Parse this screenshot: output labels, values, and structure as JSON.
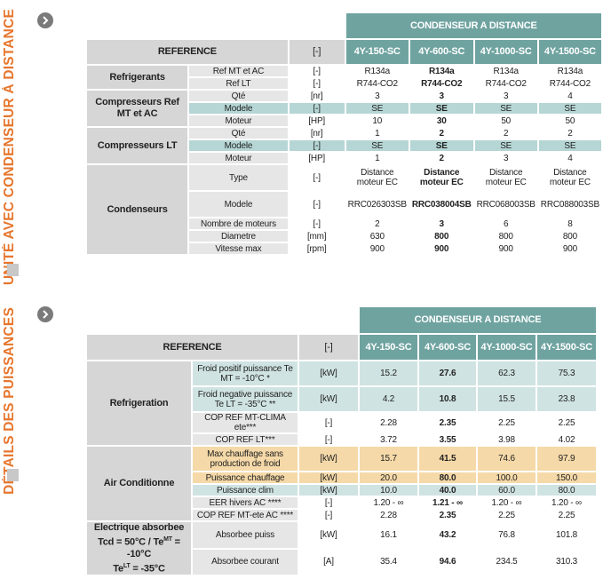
{
  "section1": {
    "side_title": "UNITÉ AVEC CONDENSEUR À DISTANCE",
    "banner": "CONDENSEUR A DISTANCE",
    "ref_label": "REFERENCE",
    "unit_label": "[-]",
    "models": [
      "4Y-150-SC",
      "4Y-600-SC",
      "4Y-1000-SC",
      "4Y-1500-SC"
    ],
    "groups": [
      {
        "name": "Refrigerants",
        "rows": [
          {
            "label": "Ref MT et AC",
            "unit": "[-]",
            "vals": [
              "R134a",
              "R134a",
              "R134a",
              "R134a"
            ]
          },
          {
            "label": "Ref LT",
            "unit": "[-]",
            "vals": [
              "R744-CO2",
              "R744-CO2",
              "R744-CO2",
              "R744-CO2"
            ]
          }
        ]
      },
      {
        "name": "Compresseurs Ref MT et AC",
        "rows": [
          {
            "label": "Qté",
            "unit": "[nr]",
            "vals": [
              "3",
              "3",
              "3",
              "4"
            ]
          },
          {
            "label": "Modele",
            "unit": "[-]",
            "vals": [
              "SE",
              "SE",
              "SE",
              "SE"
            ]
          },
          {
            "label": "Moteur",
            "unit": "[HP]",
            "vals": [
              "10",
              "30",
              "50",
              "50"
            ]
          }
        ]
      },
      {
        "name": "Compresseurs LT",
        "rows": [
          {
            "label": "Qté",
            "unit": "[nr]",
            "vals": [
              "1",
              "2",
              "2",
              "2"
            ]
          },
          {
            "label": "Modele",
            "unit": "[-]",
            "vals": [
              "SE",
              "SE",
              "SE",
              "SE"
            ]
          },
          {
            "label": "Moteur",
            "unit": "[HP]",
            "vals": [
              "1",
              "2",
              "3",
              "4"
            ]
          }
        ]
      },
      {
        "name": "Condenseurs",
        "rows": [
          {
            "label": "Type",
            "unit": "[-]",
            "vals": [
              "Distance moteur EC",
              "Distance moteur EC",
              "Distance moteur EC",
              "Distance moteur EC"
            ]
          },
          {
            "label": "Modele",
            "unit": "[-]",
            "vals": [
              "RRC026303SB",
              "RRC038004SB",
              "RRC068003SB",
              "RRC088003SB"
            ]
          },
          {
            "label": "Nombre de moteurs",
            "unit": "[-]",
            "vals": [
              "2",
              "3",
              "6",
              "8"
            ]
          },
          {
            "label": "Diametre",
            "unit": "[mm]",
            "vals": [
              "630",
              "800",
              "800",
              "800"
            ]
          },
          {
            "label": "Vitesse max",
            "unit": "[rpm]",
            "vals": [
              "900",
              "900",
              "900",
              "900"
            ]
          }
        ]
      }
    ]
  },
  "section2": {
    "side_title": "DÉTAILS DES PUISSANCES",
    "banner": "CONDENSEUR A DISTANCE",
    "ref_label": "REFERENCE",
    "unit_label": "[-]",
    "models": [
      "4Y-150-SC",
      "4Y-600-SC",
      "4Y-1000-SC",
      "4Y-1500-SC"
    ],
    "groups": [
      {
        "name": "Refrigeration",
        "rows": [
          {
            "label": "Froid positif puissance Te MT = -10°C *",
            "unit": "[kW]",
            "vals": [
              "15.2",
              "27.6",
              "62.3",
              "75.3"
            ]
          },
          {
            "label": "Froid negative puissance Te LT = -35°C **",
            "unit": "[kW]",
            "vals": [
              "4.2",
              "10.8",
              "15.5",
              "23.8"
            ]
          },
          {
            "label": "COP REF MT-CLIMA ete***",
            "unit": "[-]",
            "vals": [
              "2.28",
              "2.35",
              "2.25",
              "2.25"
            ]
          },
          {
            "label": "COP REF LT***",
            "unit": "[-]",
            "vals": [
              "3.72",
              "3.55",
              "3.98",
              "4.02"
            ]
          }
        ]
      },
      {
        "name": "Air Conditionne",
        "rows": [
          {
            "label": "Max chauffage sans production de froid",
            "unit": "[kW]",
            "vals": [
              "15.7",
              "41.5",
              "74.6",
              "97.9"
            ]
          },
          {
            "label": "Puissance chauffage",
            "unit": "[kW]",
            "vals": [
              "20.0",
              "80.0",
              "100.0",
              "150.0"
            ]
          },
          {
            "label": "Puissance clim",
            "unit": "[kW]",
            "vals": [
              "10.0",
              "40.0",
              "60.0",
              "80.0"
            ]
          },
          {
            "label": "EER hivers AC ****",
            "unit": "[-]",
            "vals": [
              "1.20 - ∞",
              "1.21 - ∞",
              "1.20 - ∞",
              "1.20 - ∞"
            ]
          },
          {
            "label": "COP REF MT-ete AC ****",
            "unit": "[-]",
            "vals": [
              "2.28",
              "2.35",
              "2.25",
              "2.25"
            ]
          }
        ]
      },
      {
        "name": "Electrique absorbee Tcd = 50°C / TeMT = -10°C TeLT = -35°C",
        "name_lines": [
          "Electrique absorbee",
          "Tcd = 50°C / Te",
          "MT",
          " = -10°C",
          "Te",
          "LT",
          " = -35°C"
        ],
        "rows": [
          {
            "label": "Absorbee puiss",
            "unit": "[kW]",
            "vals": [
              "16.1",
              "43.2",
              "76.8",
              "101.8"
            ]
          },
          {
            "label": "Absorbee courant",
            "unit": "[A]",
            "vals": [
              "35.4",
              "94.6",
              "234.5",
              "310.3"
            ]
          }
        ]
      }
    ]
  }
}
